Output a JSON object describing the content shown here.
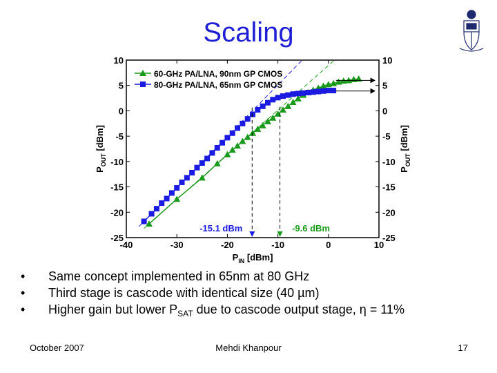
{
  "slide": {
    "title": "Scaling",
    "bullet_marker": "•",
    "bullets": [
      "Same concept implemented in 65nm at 80 GHz",
      "Third stage is cascode with identical size (40 µm)",
      {
        "before": "Higher gain but lower P",
        "sub": "SAT",
        "after": " due to cascode output stage, η = 11%"
      }
    ],
    "footer": {
      "date": "October 2007",
      "author": "Mehdi Khanpour",
      "page": "17"
    }
  },
  "colors": {
    "title": "#1f1fd6",
    "series_green": "#1a9a1a",
    "series_blue": "#1a1ae0",
    "crest": "#1e2a6e"
  },
  "icons": {
    "crest": "university-crest-icon"
  },
  "chart_data": {
    "type": "line",
    "x": {
      "label": "P",
      "label_sub": "IN",
      "label_unit": " [dBm]",
      "lim": [
        -40,
        10
      ],
      "ticks": [
        -40,
        -30,
        -20,
        -10,
        0,
        10
      ]
    },
    "y": {
      "label": "P",
      "label_sub": "OUT",
      "label_unit": " [dBm]",
      "lim": [
        -25,
        10
      ],
      "ticks": [
        -25,
        -20,
        -15,
        -10,
        -5,
        0,
        5,
        10
      ]
    },
    "legend_position": "top-left",
    "series": [
      {
        "name": "60-GHz PA/LNA, 90nm GP CMOS",
        "marker": "triangle",
        "points": [
          [
            -35.5,
            -22.3
          ],
          [
            -30,
            -17.4
          ],
          [
            -25,
            -13.2
          ],
          [
            -22,
            -10.4
          ],
          [
            -20,
            -8.6
          ],
          [
            -19,
            -7.7
          ],
          [
            -18,
            -6.9
          ],
          [
            -17,
            -6.0
          ],
          [
            -16,
            -5.2
          ],
          [
            -15,
            -4.4
          ],
          [
            -14,
            -3.6
          ],
          [
            -13,
            -2.9
          ],
          [
            -12,
            -2.1
          ],
          [
            -11,
            -1.4
          ],
          [
            -10,
            -0.6
          ],
          [
            -9,
            0.2
          ],
          [
            -8,
            0.9
          ],
          [
            -7,
            1.7
          ],
          [
            -6,
            2.4
          ],
          [
            -5,
            3.1
          ],
          [
            -4,
            3.6
          ],
          [
            -3,
            4.1
          ],
          [
            -2,
            4.5
          ],
          [
            -1,
            4.9
          ],
          [
            0,
            5.2
          ],
          [
            1,
            5.4
          ],
          [
            2,
            5.7
          ],
          [
            3,
            5.9
          ],
          [
            4,
            6.0
          ],
          [
            5,
            6.2
          ],
          [
            6,
            6.3
          ]
        ]
      },
      {
        "name": "80-GHz PA/LNA, 65nm GP CMOS",
        "marker": "square",
        "points": [
          [
            -36.5,
            -21.8
          ],
          [
            -35,
            -20.3
          ],
          [
            -34,
            -19.3
          ],
          [
            -33,
            -18.2
          ],
          [
            -32,
            -17.3
          ],
          [
            -31,
            -16.2
          ],
          [
            -30,
            -15.2
          ],
          [
            -29,
            -14.1
          ],
          [
            -28,
            -13.2
          ],
          [
            -27,
            -12.2
          ],
          [
            -26,
            -11.2
          ],
          [
            -25,
            -10.3
          ],
          [
            -24,
            -9.4
          ],
          [
            -23,
            -8.3
          ],
          [
            -22,
            -7.3
          ],
          [
            -21,
            -6.3
          ],
          [
            -20,
            -5.3
          ],
          [
            -19,
            -4.4
          ],
          [
            -18,
            -3.4
          ],
          [
            -17,
            -2.5
          ],
          [
            -16,
            -1.6
          ],
          [
            -15,
            -0.7
          ],
          [
            -14,
            0.2
          ],
          [
            -13,
            0.9
          ],
          [
            -12,
            1.6
          ],
          [
            -11,
            2.2
          ],
          [
            -10,
            2.6
          ],
          [
            -9,
            2.9
          ],
          [
            -8,
            3.1
          ],
          [
            -7,
            3.3
          ],
          [
            -6,
            3.4
          ],
          [
            -5,
            3.5
          ],
          [
            -4,
            3.6
          ],
          [
            -3,
            3.7
          ],
          [
            -2,
            3.8
          ],
          [
            -1,
            3.9
          ],
          [
            0,
            4.0
          ],
          [
            1,
            4.0
          ]
        ]
      }
    ],
    "annotations": [
      {
        "text": "-15.1 dBm",
        "x": -15.1,
        "series": "80-GHz PA/LNA, 65nm GP CMOS"
      },
      {
        "text": "-9.6 dBm",
        "x": -9.6,
        "series": "60-GHz PA/LNA, 90nm GP CMOS"
      }
    ]
  }
}
